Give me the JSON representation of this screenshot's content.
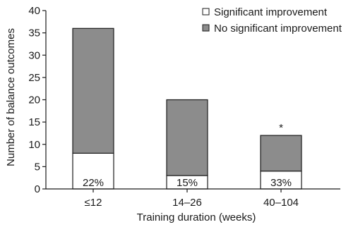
{
  "chart_data": {
    "type": "bar",
    "stacked": true,
    "title": "",
    "xlabel": "Training duration (weeks)",
    "ylabel": "Number of balance outcomes",
    "ylim": [
      0,
      40
    ],
    "yticks": [
      "0",
      "5",
      "10",
      "15",
      "20",
      "25",
      "30",
      "35",
      "40"
    ],
    "grid": false,
    "legend_placement": "top-right",
    "categories": [
      "≤12",
      "14–26",
      "40–104"
    ],
    "series": [
      {
        "name": "Significant improvement",
        "values": [
          8,
          3,
          4
        ],
        "color": "#ffffff"
      },
      {
        "name": "No significant improvement",
        "values": [
          28,
          17,
          8
        ],
        "color": "#8c8c8c"
      }
    ],
    "percent_labels": [
      "22%",
      "15%",
      "33%"
    ],
    "annotations": [
      {
        "category": "40–104",
        "text": "*"
      }
    ]
  }
}
